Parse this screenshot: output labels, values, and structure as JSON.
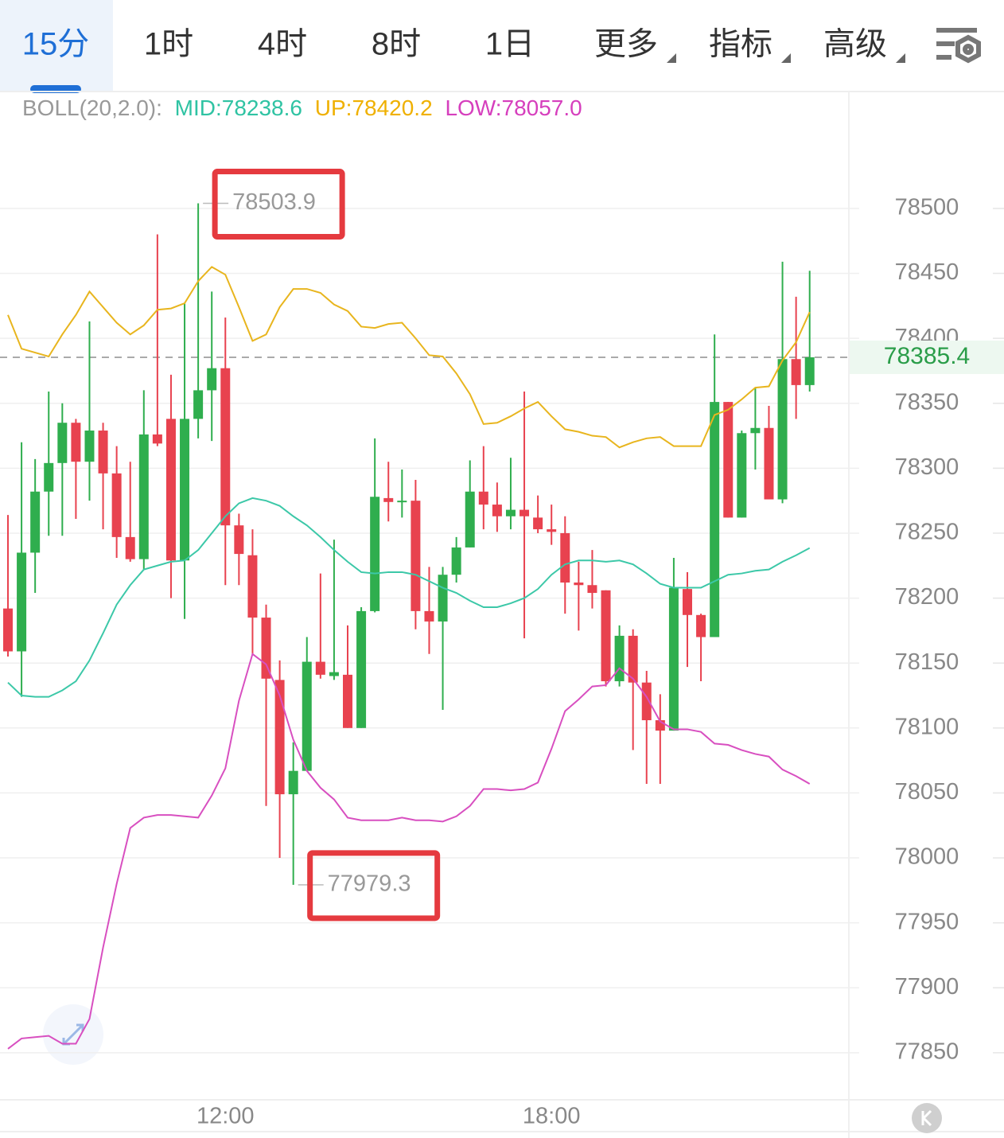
{
  "tabs": [
    "15分",
    "1时",
    "4时",
    "8时",
    "1日",
    "更多",
    "指标",
    "高级"
  ],
  "chart_data": {
    "type": "candlestick",
    "indicator": "BOLL(20,2.0):",
    "categories": [
      null,
      null,
      null,
      null,
      null,
      null,
      null,
      null,
      null,
      null,
      null,
      null,
      null,
      null,
      null,
      null,
      "12:00",
      null,
      null,
      null,
      null,
      null,
      null,
      null,
      null,
      null,
      null,
      null,
      null,
      null,
      null,
      null,
      null,
      null,
      null,
      null,
      null,
      null,
      null,
      null,
      "18:00",
      null,
      null,
      null,
      null,
      null,
      null,
      null,
      null,
      null,
      null,
      null,
      null,
      null,
      null,
      null,
      null,
      null,
      null,
      null
    ],
    "open": [
      78192,
      78159,
      78235,
      78282,
      78304,
      78335,
      78305,
      78329,
      78296,
      78247,
      78230,
      78326,
      78338,
      78229,
      78338,
      78360,
      78377,
      78256,
      78233,
      78185,
      78137,
      78049,
      78067,
      78151,
      78140,
      78141,
      78100,
      78190,
      78277,
      78274,
      78275,
      78190,
      78182,
      78218,
      78239,
      78282,
      78272,
      78263,
      78268,
      78262,
      78253,
      78250,
      78212,
      78210,
      78206,
      78136,
      78171,
      78135,
      78106,
      78098,
      78207,
      78187,
      78170,
      78351,
      78262,
      78327,
      78331,
      78276,
      78384,
      78364
    ],
    "high": [
      78264,
      78320,
      78307,
      78359,
      78350,
      78338,
      78413,
      78335,
      78317,
      78305,
      78360,
      78480,
      78372,
      78427,
      78503.9,
      78436,
      78416,
      78265,
      78253,
      78195,
      78152,
      78089,
      78170,
      78219,
      78245,
      78179,
      78193,
      78323,
      78305,
      78299,
      78291,
      78224,
      78224,
      78247,
      78306,
      78317,
      78289,
      78308,
      78359,
      78279,
      78272,
      78263,
      78228,
      78237,
      78206,
      78179,
      78176,
      78144,
      78126,
      78231,
      78220,
      78188,
      78403,
      78351,
      78329,
      78362,
      78348,
      78459,
      78432,
      78452
    ],
    "low": [
      78155,
      78124,
      78204,
      78248,
      78248,
      78261,
      78275,
      78253,
      78231,
      78228,
      78222,
      78317,
      78200,
      78184,
      78323,
      78321,
      78210,
      78210,
      78156,
      78040,
      78000,
      77979.3,
      78067,
      78138,
      78137,
      78100,
      78100,
      78189,
      78259,
      78262,
      78176,
      78157,
      78114,
      78212,
      78239,
      78253,
      78251,
      78253,
      78169,
      78250,
      78241,
      78188,
      78175,
      78192,
      78132,
      78132,
      78083,
      78057,
      78057,
      78098,
      78147,
      78136,
      78170,
      78262,
      78262,
      78299,
      78276,
      78273,
      78338,
      78359
    ],
    "close": [
      78159,
      78235,
      78282,
      78304,
      78335,
      78305,
      78329,
      78296,
      78247,
      78230,
      78326,
      78319,
      78229,
      78338,
      78360,
      78377,
      78256,
      78234,
      78185,
      78138,
      78049,
      78067,
      78151,
      78141,
      78143,
      78100,
      78190,
      78278,
      78274,
      78275,
      78190,
      78182,
      78218,
      78239,
      78282,
      78272,
      78263,
      78268,
      78263,
      78253,
      78251,
      78212,
      78210,
      78204,
      78136,
      78171,
      78135,
      78106,
      78098,
      78208,
      78187,
      78170,
      78351,
      78262,
      78327,
      78331,
      78276,
      78384,
      78364,
      78385.4
    ],
    "up_color": "#2fae4e",
    "down_color": "#e8424f",
    "series": [
      {
        "name": "MID:78238.6",
        "color": "#3cc8a8",
        "values": [
          78135,
          78125,
          78124,
          78124,
          78129,
          78136,
          78152,
          78173,
          78195,
          78210,
          78222,
          78225,
          78228,
          78229,
          78237,
          78250,
          78263,
          78273,
          78277,
          78275,
          78271,
          78263,
          78256,
          78247,
          78237,
          78228,
          78220,
          78219,
          78220,
          78220,
          78218,
          78213,
          78208,
          78204,
          78198,
          78193,
          78193,
          78196,
          78200,
          78207,
          78218,
          78226,
          78229,
          78229,
          78228,
          78229,
          78226,
          78219,
          78211,
          78208,
          78208,
          78208,
          78213,
          78218,
          78219,
          78221,
          78222,
          78228,
          78233,
          78238.6
        ]
      },
      {
        "name": "UP:78420.2",
        "color": "#e8b51e",
        "values": [
          78418,
          78392,
          78389,
          78386,
          78403,
          78418,
          78436,
          78424,
          78412,
          78403,
          78410,
          78422,
          78423,
          78427,
          78444,
          78455,
          78449,
          78424,
          78398,
          78403,
          78424,
          78438,
          78438,
          78435,
          78426,
          78421,
          78409,
          78408,
          78411,
          78412,
          78400,
          78387,
          78386,
          78373,
          78357,
          78334,
          78335,
          78340,
          78346,
          78351,
          78340,
          78330,
          78328,
          78325,
          78324,
          78316,
          78320,
          78323,
          78324,
          78317,
          78317,
          78317,
          78341,
          78345,
          78353,
          78362,
          78363,
          78383,
          78397,
          78420.2
        ]
      },
      {
        "name": "LOW:78057.0",
        "color": "#d84fc0",
        "values": [
          77853,
          77861,
          77862,
          77863,
          77857,
          77857,
          77876,
          77931,
          77980,
          78023,
          78031,
          78033,
          78033,
          78032,
          78031,
          78048,
          78069,
          78121,
          78157,
          78149,
          78125,
          78091,
          78067,
          78054,
          78045,
          78031,
          78029,
          78029,
          78029,
          78031,
          78029,
          78029,
          78028,
          78032,
          78040,
          78053,
          78053,
          78052,
          78053,
          78058,
          78084,
          78113,
          78122,
          78132,
          78133,
          78146,
          78138,
          78124,
          78105,
          78099,
          78099,
          78097,
          78088,
          78087,
          78083,
          78080,
          78078,
          78068,
          78063,
          78057.0
        ]
      }
    ],
    "annotations": [
      78503.9,
      77979.3
    ],
    "last_price": 78385.4,
    "ylim": [
      77815,
      78590
    ],
    "yticks": [
      77850,
      77900,
      77950,
      78000,
      78050,
      78100,
      78150,
      78200,
      78250,
      78300,
      78350,
      78400,
      78450,
      78500
    ],
    "grid": true
  }
}
